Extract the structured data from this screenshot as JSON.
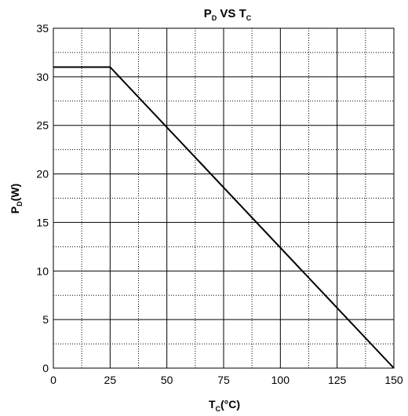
{
  "chart_data": {
    "type": "line",
    "title": {
      "main": "P",
      "sub": "D",
      "mid": " VS T",
      "sub2": "C"
    },
    "xlabel": {
      "main": "T",
      "sub": "C",
      "rest": "(°C)"
    },
    "ylabel": {
      "main": "P",
      "sub": "D",
      "rest": "(W)"
    },
    "xlim": [
      0,
      150
    ],
    "ylim": [
      0,
      35
    ],
    "x_ticks": [
      0,
      25,
      50,
      75,
      100,
      125,
      150
    ],
    "y_ticks": [
      0,
      5,
      10,
      15,
      20,
      25,
      30,
      35
    ],
    "x_minor_step": 12.5,
    "y_minor_step": 2.5,
    "grid": true,
    "series": [
      {
        "x": [
          0,
          25,
          150
        ],
        "y": [
          31,
          31,
          0
        ]
      }
    ]
  },
  "colors": {
    "line": "#000000",
    "grid_major": "#000000",
    "grid_minor": "#000000",
    "frame": "#000000"
  }
}
